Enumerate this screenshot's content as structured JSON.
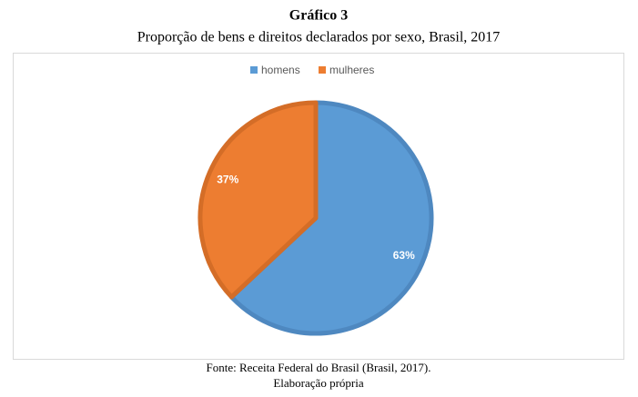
{
  "chart_data": {
    "type": "pie",
    "title": "Gráfico 3",
    "subtitle": "Proporção de bens e direitos declarados por sexo, Brasil, 2017",
    "categories": [
      "homens",
      "mulheres"
    ],
    "values": [
      63,
      37
    ],
    "value_labels": [
      "63%",
      "37%"
    ],
    "colors": [
      "#5b9bd5",
      "#ed7d31"
    ],
    "stroke_colors": [
      "#4e88c0",
      "#d46d27"
    ],
    "legend": "top",
    "notes": [
      "Fonte: Receita Federal do Brasil (Brasil, 2017).",
      "Elaboração própria"
    ]
  }
}
